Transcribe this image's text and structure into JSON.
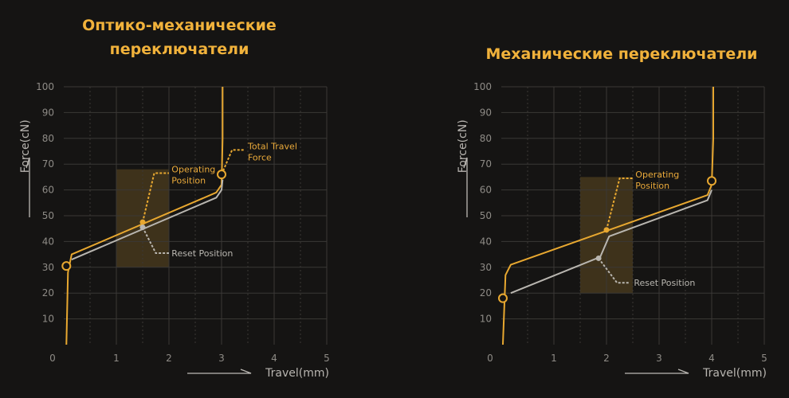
{
  "chart_data": [
    {
      "type": "line",
      "title": "Оптико-механические переключатели",
      "xlabel": "Travel(mm)",
      "ylabel": "Force(cN)",
      "xlim": [
        0,
        5
      ],
      "ylim": [
        0,
        100
      ],
      "x_ticks": [
        "0",
        "1",
        "2",
        "3",
        "4",
        "5"
      ],
      "y_ticks": [
        "10",
        "20",
        "30",
        "40",
        "50",
        "60",
        "70",
        "80",
        "90",
        "100"
      ],
      "grid": true,
      "highlight_box": {
        "x": [
          1.0,
          2.0
        ],
        "y": [
          30,
          68
        ]
      },
      "series": [
        {
          "color": "#e8a830",
          "x": [
            0.05,
            0.08,
            0.15,
            2.9,
            3.0,
            3.02,
            3.02
          ],
          "y": [
            0,
            28,
            35,
            59,
            62,
            80,
            100
          ]
        },
        {
          "color": "#b9b6b0",
          "x": [
            0.15,
            2.9,
            3.0,
            3.02
          ],
          "y": [
            33,
            57,
            60,
            64
          ]
        }
      ],
      "markers": [
        {
          "type": "circle",
          "x": 0.05,
          "y": 30.5,
          "color": "#e8a830"
        },
        {
          "type": "circle",
          "x": 3.0,
          "y": 66,
          "color": "#e8a830"
        },
        {
          "type": "dot",
          "x": 1.5,
          "y": 47.5,
          "color": "#e8a830"
        },
        {
          "type": "dot",
          "x": 1.5,
          "y": 45.5,
          "color": "#b9b6b0"
        }
      ],
      "annotations": [
        {
          "text": "Operating Position",
          "color": "#e8a830",
          "anchor": [
            1.5,
            47.5
          ],
          "path": [
            [
              1.5,
              47.5
            ],
            [
              1.72,
              66.5
            ],
            [
              2.0,
              66.5
            ]
          ],
          "label_pos": [
            2.05,
            66.5
          ]
        },
        {
          "text": "Reset Position",
          "color": "#b9b6b0",
          "anchor": [
            1.5,
            45.5
          ],
          "path": [
            [
              1.5,
              45.5
            ],
            [
              1.75,
              35.5
            ],
            [
              2.0,
              35.5
            ]
          ],
          "label_pos": [
            2.05,
            35.5
          ]
        },
        {
          "text": "Total Travel Force",
          "color": "#e8a830",
          "anchor": [
            3.0,
            66
          ],
          "path": [
            [
              3.0,
              66
            ],
            [
              3.2,
              75.5
            ],
            [
              3.45,
              75.5
            ]
          ],
          "label_pos": [
            3.5,
            75.5
          ]
        }
      ]
    },
    {
      "type": "line",
      "title": "Механические переключатели",
      "xlabel": "Travel(mm)",
      "ylabel": "Force(cN)",
      "xlim": [
        0,
        5
      ],
      "ylim": [
        0,
        100
      ],
      "x_ticks": [
        "0",
        "1",
        "2",
        "3",
        "4",
        "5"
      ],
      "y_ticks": [
        "10",
        "20",
        "30",
        "40",
        "50",
        "60",
        "70",
        "80",
        "90",
        "100"
      ],
      "grid": true,
      "highlight_box": {
        "x": [
          1.5,
          2.5
        ],
        "y": [
          20,
          65
        ]
      },
      "series": [
        {
          "color": "#e8a830",
          "x": [
            0.03,
            0.08,
            0.18,
            3.92,
            4.0,
            4.03,
            4.03
          ],
          "y": [
            0,
            27,
            31,
            58,
            62,
            80,
            100
          ]
        },
        {
          "color": "#b9b6b0",
          "x": [
            0.18,
            1.88,
            2.05,
            3.92,
            4.0
          ],
          "y": [
            20,
            34,
            42,
            56,
            60
          ]
        }
      ],
      "markers": [
        {
          "type": "circle",
          "x": 0.03,
          "y": 18,
          "color": "#e8a830"
        },
        {
          "type": "circle",
          "x": 4.0,
          "y": 63.5,
          "color": "#e8a830"
        },
        {
          "type": "dot",
          "x": 2.0,
          "y": 44.5,
          "color": "#e8a830"
        },
        {
          "type": "dot",
          "x": 1.85,
          "y": 33.5,
          "color": "#b9b6b0"
        }
      ],
      "annotations": [
        {
          "text": "Operating Position",
          "color": "#e8a830",
          "anchor": [
            2.0,
            44.5
          ],
          "path": [
            [
              2.0,
              44.5
            ],
            [
              2.25,
              64.5
            ],
            [
              2.5,
              64.5
            ]
          ],
          "label_pos": [
            2.55,
            64.5
          ]
        },
        {
          "text": "Reset Position",
          "color": "#b9b6b0",
          "anchor": [
            1.85,
            33.5
          ],
          "path": [
            [
              1.85,
              33.5
            ],
            [
              2.2,
              24
            ],
            [
              2.45,
              24
            ]
          ],
          "label_pos": [
            2.52,
            24
          ]
        }
      ]
    }
  ]
}
